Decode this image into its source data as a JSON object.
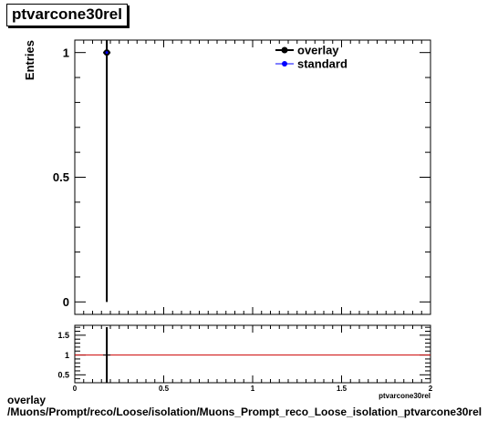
{
  "chart_data": [
    {
      "type": "line",
      "title": "ptvarcone30rel",
      "ylabel": "Entries",
      "xlim": [
        0,
        2
      ],
      "ylim": [
        -0.05,
        1.05
      ],
      "yticks": [
        0,
        0.5,
        1
      ],
      "ytick_labels": [
        "0",
        "0.5",
        "1"
      ],
      "legend_position": "top-right",
      "series": [
        {
          "name": "overlay",
          "color": "#000000",
          "x": [
            0.18
          ],
          "y": [
            1
          ]
        },
        {
          "name": "standard",
          "color": "#0000ff",
          "x": [
            0.18
          ],
          "y": [
            1
          ]
        }
      ]
    },
    {
      "type": "line",
      "xlabel": "ptvarcone30rel",
      "xlim": [
        0,
        2
      ],
      "ylim": [
        0.3,
        1.75
      ],
      "xticks": [
        0,
        0.5,
        1,
        1.5,
        2
      ],
      "xtick_labels": [
        "0",
        "0.5",
        "1",
        "1.5",
        "2"
      ],
      "yticks": [
        0.5,
        1,
        1.5
      ],
      "ytick_labels": [
        "0.5",
        "1",
        "1.5"
      ],
      "reference_line": {
        "y": 1,
        "color": "#cc0000"
      },
      "series": [
        {
          "color": "#000000",
          "x": [
            0.18
          ],
          "y": [
            1
          ]
        }
      ]
    }
  ],
  "footer": {
    "line1": "overlay",
    "line2": "/Muons/Prompt/reco/Loose/isolation/Muons_Prompt_reco_Loose_isolation_ptvarcone30rel"
  }
}
